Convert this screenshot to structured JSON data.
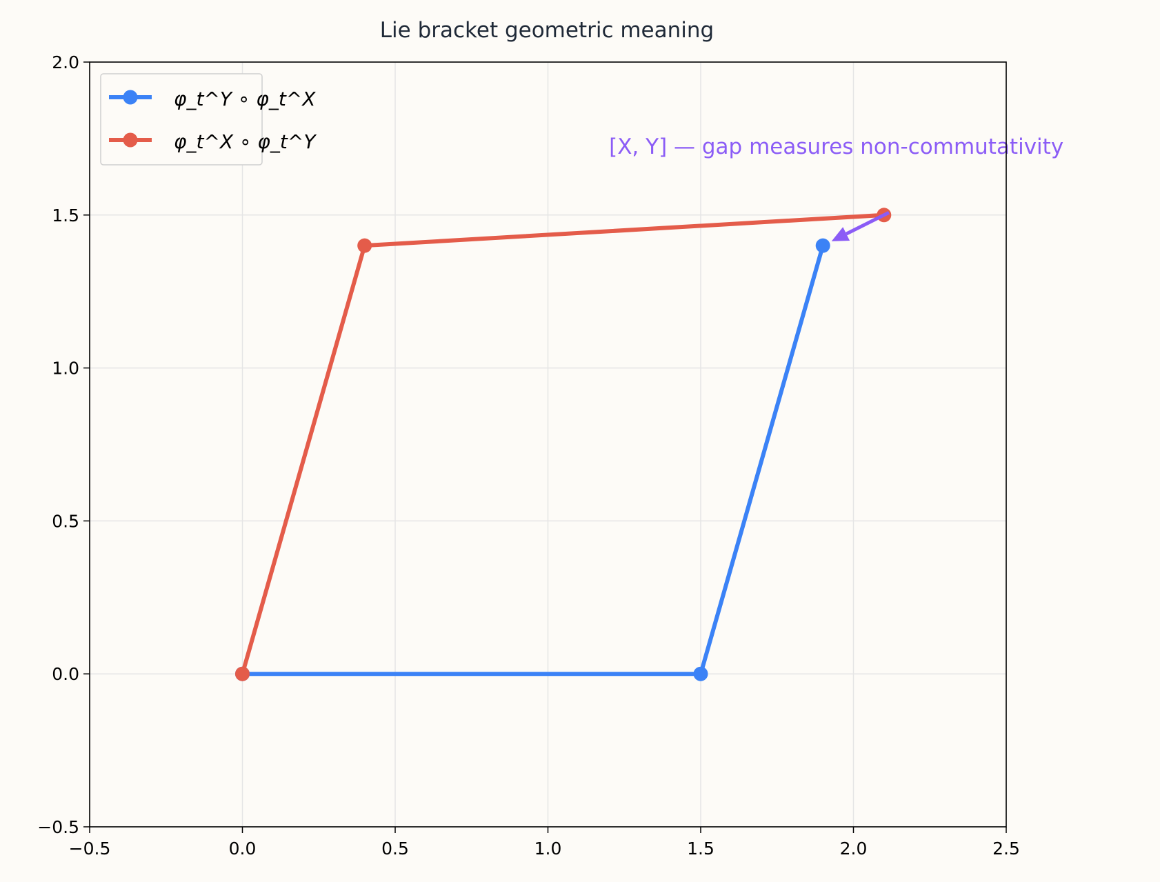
{
  "chart_data": {
    "type": "line",
    "title": "Lie bracket geometric meaning",
    "xlabel": "",
    "ylabel": "",
    "xlim": [
      -0.5,
      2.5
    ],
    "ylim": [
      -0.5,
      2.0
    ],
    "xticks": [
      -0.5,
      0.0,
      0.5,
      1.0,
      1.5,
      2.0,
      2.5
    ],
    "yticks": [
      -0.5,
      0.0,
      0.5,
      1.0,
      1.5,
      2.0
    ],
    "xtick_labels": [
      "−0.5",
      "0.0",
      "0.5",
      "1.0",
      "1.5",
      "2.0",
      "2.5"
    ],
    "ytick_labels": [
      "−0.5",
      "0.0",
      "0.5",
      "1.0",
      "1.5",
      "2.0"
    ],
    "grid": true,
    "legend_position": "top-left",
    "series": [
      {
        "name": "φ_t^Y ∘ φ_t^X",
        "color": "#3b82f6",
        "points": [
          [
            0.0,
            0.0
          ],
          [
            1.5,
            0.0
          ],
          [
            1.9,
            1.4
          ]
        ]
      },
      {
        "name": "φ_t^X ∘ φ_t^Y",
        "color": "#e45c4a",
        "points": [
          [
            0.0,
            0.0
          ],
          [
            0.4,
            1.4
          ],
          [
            2.1,
            1.5
          ]
        ]
      }
    ],
    "annotations": [
      {
        "text": "[X, Y] — gap measures non-commutativity",
        "color": "#8b5cf6",
        "text_x": 1.2,
        "text_y": 1.7,
        "arrow_from": [
          2.1,
          1.5
        ],
        "arrow_to": [
          1.9,
          1.4
        ]
      }
    ]
  }
}
